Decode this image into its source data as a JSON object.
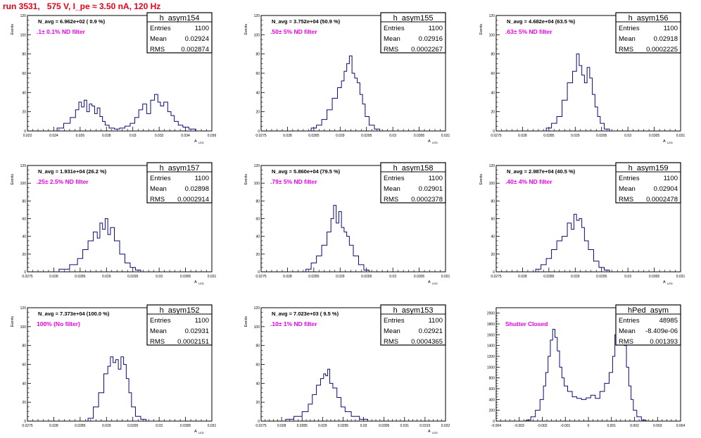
{
  "page_title": "run 3531,   575 V, I_pe ≈ 3.50 nA, 120 Hz",
  "colors": {
    "hist": "#0a0a78",
    "frame": "#000000",
    "title_red": "#e8001a",
    "filter_magenta": "#ee00ee"
  },
  "chart_data": [
    {
      "type": "histogram",
      "name": "h_asym154",
      "stats": {
        "entries_label": "Entries",
        "entries": "1100",
        "mean_label": "Mean",
        "mean": "0.02924",
        "rms_label": "RMS",
        "rms": "0.002874"
      },
      "navg_text": "N_avg = 6.962e+02 ( 0.9 %)",
      "filter_text": ".1± 0.1% ND filter",
      "xlabel": "A",
      "xlabel_sub": "LED",
      "ylabel": "Events",
      "xlim": [
        0.022,
        0.036
      ],
      "ylim": [
        0,
        120
      ],
      "xticks": [
        0.022,
        0.024,
        0.026,
        0.028,
        0.03,
        0.032,
        0.034,
        0.036
      ],
      "xtick_labels": [
        "0.022",
        "0.024",
        "0.026",
        "0.028",
        "0.03",
        "0.032",
        "0.034",
        "0.036"
      ],
      "yticks": [
        0,
        20,
        40,
        60,
        80,
        100,
        120
      ],
      "ytick_labels": [
        "0",
        "20",
        "40",
        "60",
        "80",
        "100",
        "120"
      ],
      "x": [
        0.0245,
        0.025,
        0.0255,
        0.0258,
        0.026,
        0.0262,
        0.0264,
        0.0266,
        0.0268,
        0.027,
        0.0272,
        0.0274,
        0.0276,
        0.0278,
        0.028,
        0.0284,
        0.0288,
        0.0292,
        0.0296,
        0.03,
        0.0303,
        0.0306,
        0.0309,
        0.0312,
        0.0315,
        0.0318,
        0.032,
        0.0322,
        0.0325,
        0.0328,
        0.033,
        0.0333,
        0.0336,
        0.034,
        0.0345
      ],
      "values": [
        3,
        8,
        14,
        22,
        30,
        25,
        32,
        20,
        28,
        26,
        18,
        24,
        15,
        10,
        6,
        3,
        2,
        3,
        5,
        8,
        14,
        22,
        28,
        18,
        32,
        38,
        30,
        26,
        30,
        20,
        16,
        10,
        6,
        4,
        2
      ]
    },
    {
      "type": "histogram",
      "name": "h_asym155",
      "stats": {
        "entries_label": "Entries",
        "entries": "1100",
        "mean_label": "Mean",
        "mean": "0.02916",
        "rms_label": "RMS",
        "rms": "0.0002267"
      },
      "navg_text": "N_avg = 3.752e+04 (50.9 %)",
      "filter_text": ".50± 5% ND filter",
      "xlabel": "A",
      "xlabel_sub": "LED",
      "ylabel": "Events",
      "xlim": [
        0.0275,
        0.031
      ],
      "ylim": [
        0,
        120
      ],
      "xticks": [
        0.0275,
        0.028,
        0.0285,
        0.029,
        0.0295,
        0.03,
        0.0305,
        0.031
      ],
      "xtick_labels": [
        "0.0275",
        "0.028",
        "0.0285",
        "0.029",
        "0.0295",
        "0.03",
        "0.0305",
        "0.031"
      ],
      "yticks": [
        0,
        20,
        40,
        60,
        80,
        100,
        120
      ],
      "ytick_labels": [
        "0",
        "20",
        "40",
        "60",
        "80",
        "100",
        "120"
      ],
      "x": [
        0.0285,
        0.0286,
        0.0287,
        0.0288,
        0.0289,
        0.029,
        0.02905,
        0.0291,
        0.02915,
        0.0292,
        0.02925,
        0.0293,
        0.02935,
        0.0294,
        0.02945,
        0.0295,
        0.0296,
        0.0297
      ],
      "values": [
        3,
        6,
        12,
        22,
        34,
        45,
        52,
        62,
        70,
        78,
        60,
        55,
        50,
        38,
        28,
        15,
        6,
        2
      ]
    },
    {
      "type": "histogram",
      "name": "h_asym156",
      "stats": {
        "entries_label": "Entries",
        "entries": "1100",
        "mean_label": "Mean",
        "mean": "0.02918",
        "rms_label": "RMS",
        "rms": "0.0002225"
      },
      "navg_text": "N_avg = 4.682e+04 (63.5 %)",
      "filter_text": ".63± 5% ND filter",
      "xlabel": "A",
      "xlabel_sub": "LED",
      "ylabel": "Events",
      "xlim": [
        0.0275,
        0.031
      ],
      "ylim": [
        0,
        120
      ],
      "xticks": [
        0.0275,
        0.028,
        0.0285,
        0.029,
        0.0295,
        0.03,
        0.0305,
        0.031
      ],
      "xtick_labels": [
        "0.0275",
        "0.028",
        "0.0285",
        "0.029",
        "0.0295",
        "0.03",
        "0.0305",
        "0.031"
      ],
      "yticks": [
        0,
        20,
        40,
        60,
        80,
        100,
        120
      ],
      "ytick_labels": [
        "0",
        "20",
        "40",
        "60",
        "80",
        "100",
        "120"
      ],
      "x": [
        0.0285,
        0.0286,
        0.0287,
        0.0288,
        0.0289,
        0.029,
        0.02905,
        0.0291,
        0.02915,
        0.0292,
        0.02925,
        0.0293,
        0.02935,
        0.0294,
        0.02945,
        0.0295,
        0.0296
      ],
      "values": [
        3,
        8,
        15,
        32,
        50,
        62,
        80,
        68,
        58,
        50,
        66,
        55,
        38,
        25,
        15,
        8,
        2
      ]
    },
    {
      "type": "histogram",
      "name": "h_asym157",
      "stats": {
        "entries_label": "Entries",
        "entries": "1100",
        "mean_label": "Mean",
        "mean": "0.02898",
        "rms_label": "RMS",
        "rms": "0.0002914"
      },
      "navg_text": "N_avg = 1.931e+04 (26.2 %)",
      "filter_text": ".25± 2.5% ND filter",
      "xlabel": "A",
      "xlabel_sub": "LED",
      "ylabel": "Events",
      "xlim": [
        0.0275,
        0.031
      ],
      "ylim": [
        0,
        120
      ],
      "xticks": [
        0.0275,
        0.028,
        0.0285,
        0.029,
        0.0295,
        0.03,
        0.0305,
        0.031
      ],
      "xtick_labels": [
        "0.0275",
        "0.028",
        "0.0285",
        "0.029",
        "0.0295",
        "0.03",
        "0.0305",
        "0.031"
      ],
      "yticks": [
        0,
        20,
        40,
        60,
        80,
        100,
        120
      ],
      "ytick_labels": [
        "0",
        "20",
        "40",
        "60",
        "80",
        "100",
        "120"
      ],
      "x": [
        0.0282,
        0.0284,
        0.0285,
        0.0286,
        0.0287,
        0.0288,
        0.02885,
        0.0289,
        0.02895,
        0.029,
        0.02905,
        0.0291,
        0.0292,
        0.0293,
        0.0294,
        0.0295,
        0.0296
      ],
      "values": [
        3,
        8,
        15,
        25,
        35,
        45,
        38,
        55,
        48,
        60,
        42,
        50,
        35,
        20,
        10,
        5,
        2
      ]
    },
    {
      "type": "histogram",
      "name": "h_asym158",
      "stats": {
        "entries_label": "Entries",
        "entries": "1100",
        "mean_label": "Mean",
        "mean": "0.02901",
        "rms_label": "RMS",
        "rms": "0.0002378"
      },
      "navg_text": "N_avg = 5.860e+04 (79.5 %)",
      "filter_text": ".79± 5% ND filter",
      "xlabel": "A",
      "xlabel_sub": "LED",
      "ylabel": "Events",
      "xlim": [
        0.0275,
        0.031
      ],
      "ylim": [
        0,
        120
      ],
      "xticks": [
        0.0275,
        0.028,
        0.0285,
        0.029,
        0.0295,
        0.03,
        0.0305,
        0.031
      ],
      "xtick_labels": [
        "0.0275",
        "0.028",
        "0.0285",
        "0.029",
        "0.0295",
        "0.03",
        "0.0305",
        "0.031"
      ],
      "yticks": [
        0,
        20,
        40,
        60,
        80,
        100,
        120
      ],
      "ytick_labels": [
        "0",
        "20",
        "40",
        "60",
        "80",
        "100",
        "120"
      ],
      "x": [
        0.0284,
        0.0285,
        0.0286,
        0.0287,
        0.0288,
        0.02885,
        0.0289,
        0.02895,
        0.029,
        0.02905,
        0.0291,
        0.02915,
        0.0292,
        0.0293,
        0.0294,
        0.0295
      ],
      "values": [
        3,
        10,
        18,
        30,
        45,
        60,
        75,
        55,
        68,
        50,
        45,
        40,
        30,
        18,
        8,
        2
      ]
    },
    {
      "type": "histogram",
      "name": "h_asym159",
      "stats": {
        "entries_label": "Entries",
        "entries": "1100",
        "mean_label": "Mean",
        "mean": "0.02904",
        "rms_label": "RMS",
        "rms": "0.0002478"
      },
      "navg_text": "N_avg = 2.987e+04 (40.5 %)",
      "filter_text": ".40± 4% ND filter",
      "xlabel": "A",
      "xlabel_sub": "LED",
      "ylabel": "Events",
      "xlim": [
        0.0275,
        0.031
      ],
      "ylim": [
        0,
        120
      ],
      "xticks": [
        0.0275,
        0.028,
        0.0285,
        0.029,
        0.0295,
        0.03,
        0.0305,
        0.031
      ],
      "xtick_labels": [
        "0.0275",
        "0.028",
        "0.0285",
        "0.029",
        "0.0295",
        "0.03",
        "0.0305",
        "0.031"
      ],
      "yticks": [
        0,
        20,
        40,
        60,
        80,
        100,
        120
      ],
      "ytick_labels": [
        "0",
        "20",
        "40",
        "60",
        "80",
        "100",
        "120"
      ],
      "x": [
        0.0283,
        0.0284,
        0.0285,
        0.0286,
        0.0287,
        0.0288,
        0.0289,
        0.02895,
        0.029,
        0.02905,
        0.0291,
        0.02915,
        0.0292,
        0.0293,
        0.0294,
        0.0295,
        0.0296
      ],
      "values": [
        3,
        8,
        15,
        25,
        35,
        40,
        55,
        48,
        65,
        58,
        60,
        50,
        35,
        25,
        12,
        5,
        2
      ]
    },
    {
      "type": "histogram",
      "name": "h_asym152",
      "stats": {
        "entries_label": "Entries",
        "entries": "1100",
        "mean_label": "Mean",
        "mean": "0.02931",
        "rms_label": "RMS",
        "rms": "0.0002151"
      },
      "navg_text": "N_avg = 7.373e+04 (100.0 %)",
      "filter_text": "100% (No filter)",
      "xlabel": "A",
      "xlabel_sub": "LED",
      "ylabel": "Events",
      "xlim": [
        0.0275,
        0.031
      ],
      "ylim": [
        0,
        120
      ],
      "xticks": [
        0.0275,
        0.028,
        0.0285,
        0.029,
        0.0295,
        0.03,
        0.0305,
        0.031
      ],
      "xtick_labels": [
        "0.0275",
        "0.028",
        "0.0285",
        "0.029",
        "0.0295",
        "0.03",
        "0.0305",
        "0.031"
      ],
      "yticks": [
        0,
        20,
        40,
        60,
        80,
        100,
        120
      ],
      "ytick_labels": [
        "0",
        "20",
        "40",
        "60",
        "80",
        "100",
        "120"
      ],
      "x": [
        0.0287,
        0.0288,
        0.0289,
        0.029,
        0.02905,
        0.0291,
        0.02915,
        0.0292,
        0.02925,
        0.0293,
        0.02935,
        0.0294,
        0.02945,
        0.0295,
        0.0296,
        0.0297
      ],
      "values": [
        3,
        15,
        30,
        50,
        58,
        68,
        62,
        65,
        55,
        68,
        60,
        45,
        30,
        15,
        5,
        2
      ]
    },
    {
      "type": "histogram",
      "name": "h_asym153",
      "stats": {
        "entries_label": "Entries",
        "entries": "1100",
        "mean_label": "Mean",
        "mean": "0.02921",
        "rms_label": "RMS",
        "rms": "0.0004365"
      },
      "navg_text": "N_avg = 7.023e+03 ( 9.5 %)",
      "filter_text": ".10± 1% ND filter",
      "xlabel": "A",
      "xlabel_sub": "LED",
      "ylabel": "Events",
      "xlim": [
        0.0275,
        0.032
      ],
      "ylim": [
        0,
        120
      ],
      "xticks": [
        0.0275,
        0.028,
        0.0285,
        0.029,
        0.0295,
        0.03,
        0.0305,
        0.031,
        0.0315,
        0.032
      ],
      "xtick_labels": [
        "0.0275",
        "0.028",
        "0.0285",
        "0.029",
        "0.0295",
        "0.03",
        "0.0305",
        "0.031",
        "0.0315",
        "0.032"
      ],
      "yticks": [
        0,
        20,
        40,
        60,
        80,
        100,
        120
      ],
      "ytick_labels": [
        "0",
        "20",
        "40",
        "60",
        "80",
        "100",
        "120"
      ],
      "x": [
        0.0282,
        0.0284,
        0.0286,
        0.0287,
        0.0288,
        0.0289,
        0.029,
        0.02905,
        0.0291,
        0.02915,
        0.0292,
        0.0293,
        0.0294,
        0.0295,
        0.0296,
        0.0298,
        0.03
      ],
      "values": [
        2,
        5,
        10,
        18,
        28,
        38,
        45,
        50,
        48,
        55,
        40,
        35,
        25,
        15,
        10,
        5,
        2
      ]
    },
    {
      "type": "histogram",
      "name": "hPed_asym",
      "stats": {
        "entries_label": "Entries",
        "entries": "48985",
        "mean_label": "Mean",
        "mean": "-8.409e-06",
        "rms_label": "RMS",
        "rms": "0.001393"
      },
      "navg_text": "",
      "filter_text": "Shutter Closed",
      "xlabel": "",
      "xlabel_sub": "",
      "ylabel": "",
      "xlim": [
        -0.004,
        0.004
      ],
      "ylim": [
        0,
        2100
      ],
      "xticks": [
        -0.004,
        -0.003,
        -0.002,
        -0.001,
        0,
        0.001,
        0.002,
        0.003,
        0.004
      ],
      "xtick_labels": [
        "-0.004",
        "-0.003",
        "-0.002",
        "-0.001",
        "0",
        "0.001",
        "0.002",
        "0.003",
        "0.004"
      ],
      "yticks": [
        0,
        200,
        400,
        600,
        800,
        1000,
        1200,
        1400,
        1600,
        1800,
        2000
      ],
      "ytick_labels": [
        "0",
        "200",
        "400",
        "600",
        "800",
        "1000",
        "1200",
        "1400",
        "1600",
        "1800",
        "2000"
      ],
      "x": [
        -0.0026,
        -0.0024,
        -0.0022,
        -0.002,
        -0.0019,
        -0.0018,
        -0.0017,
        -0.0016,
        -0.0015,
        -0.0014,
        -0.0013,
        -0.0012,
        -0.0011,
        -0.001,
        -0.0008,
        -0.0006,
        -0.0004,
        -0.0002,
        0,
        0.0002,
        0.0004,
        0.0006,
        0.0008,
        0.001,
        0.0011,
        0.0012,
        0.0013,
        0.0014,
        0.0015,
        0.0016,
        0.0017,
        0.0018,
        0.0019,
        0.002,
        0.0022,
        0.0024
      ],
      "values": [
        20,
        80,
        200,
        400,
        650,
        900,
        1200,
        1500,
        1700,
        1550,
        1300,
        1000,
        800,
        650,
        550,
        450,
        420,
        400,
        430,
        480,
        420,
        550,
        700,
        900,
        1200,
        1600,
        1850,
        2000,
        1800,
        1400,
        1000,
        650,
        400,
        200,
        80,
        20
      ]
    }
  ]
}
